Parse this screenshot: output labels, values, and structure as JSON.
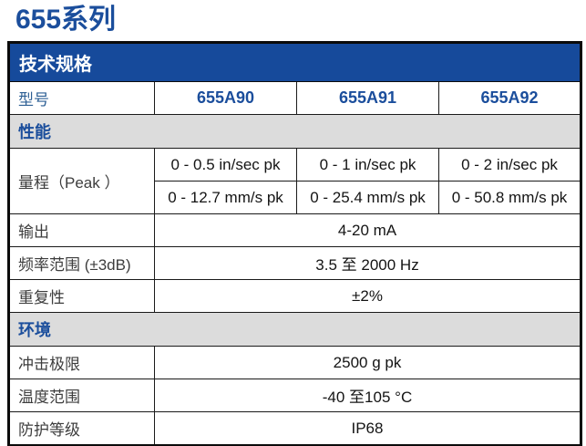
{
  "page": {
    "title": "655系列"
  },
  "table": {
    "header": "技术规格",
    "model": {
      "label": "型号",
      "values": [
        "655A90",
        "655A91",
        "655A92"
      ]
    },
    "section_performance": "性能",
    "range": {
      "label": "量程（Peak ）",
      "row_insec": [
        "0 - 0.5 in/sec pk",
        "0 - 1 in/sec pk",
        "0 - 2 in/sec pk"
      ],
      "row_mms": [
        "0 - 12.7 mm/s pk",
        "0 - 25.4 mm/s pk",
        "0 - 50.8 mm/s pk"
      ]
    },
    "output": {
      "label": "输出",
      "value": "4-20 mA"
    },
    "frequency": {
      "label": "频率范围 (±3dB)",
      "value": "3.5 至 2000 Hz"
    },
    "repeatability": {
      "label": "重复性",
      "value": "±2%"
    },
    "section_environment": "环境",
    "shock": {
      "label": "冲击极限",
      "value": "2500 g pk"
    },
    "temperature": {
      "label": "温度范围",
      "value": "-40 至105 °C"
    },
    "protection": {
      "label": "防护等级",
      "value": "IP68"
    }
  },
  "colors": {
    "header_bg": "#164A9B",
    "accent_blue": "#1B4E9C",
    "section_bg": "#DCDCDC",
    "label_blue": "#2D5F94"
  }
}
